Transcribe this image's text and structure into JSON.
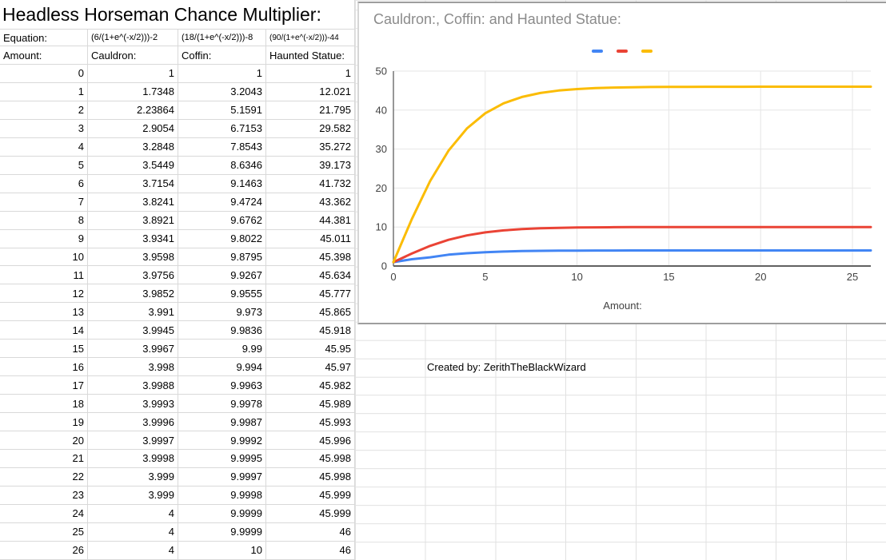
{
  "sheet": {
    "title": "Headless Horseman Chance Multiplier:",
    "equation_label": "Equation:",
    "equations": [
      "(6/(1+e^(-x/2)))-2",
      "(18/(1+e^(-x/2)))-8",
      "(90/(1+e^(-x/2)))-44"
    ],
    "headers": [
      "Amount:",
      "Cauldron:",
      "Coffin:",
      "Haunted Statue:"
    ],
    "rows": [
      [
        0,
        1,
        1,
        1
      ],
      [
        1,
        1.7348,
        3.2043,
        12.021
      ],
      [
        2,
        2.23864,
        5.1591,
        21.795
      ],
      [
        3,
        2.9054,
        6.7153,
        29.582
      ],
      [
        4,
        3.2848,
        7.8543,
        35.272
      ],
      [
        5,
        3.5449,
        8.6346,
        39.173
      ],
      [
        6,
        3.7154,
        9.1463,
        41.732
      ],
      [
        7,
        3.8241,
        9.4724,
        43.362
      ],
      [
        8,
        3.8921,
        9.6762,
        44.381
      ],
      [
        9,
        3.9341,
        9.8022,
        45.011
      ],
      [
        10,
        3.9598,
        9.8795,
        45.398
      ],
      [
        11,
        3.9756,
        9.9267,
        45.634
      ],
      [
        12,
        3.9852,
        9.9555,
        45.777
      ],
      [
        13,
        3.991,
        9.973,
        45.865
      ],
      [
        14,
        3.9945,
        9.9836,
        45.918
      ],
      [
        15,
        3.9967,
        9.99,
        45.95
      ],
      [
        16,
        3.998,
        9.994,
        45.97
      ],
      [
        17,
        3.9988,
        9.9963,
        45.982
      ],
      [
        18,
        3.9993,
        9.9978,
        45.989
      ],
      [
        19,
        3.9996,
        9.9987,
        45.993
      ],
      [
        20,
        3.9997,
        9.9992,
        45.996
      ],
      [
        21,
        3.9998,
        9.9995,
        45.998
      ],
      [
        22,
        3.999,
        9.9997,
        45.998
      ],
      [
        23,
        3.999,
        9.9998,
        45.999
      ],
      [
        24,
        4,
        9.9999,
        45.999
      ],
      [
        25,
        4,
        9.9999,
        46
      ],
      [
        26,
        4,
        10,
        46
      ]
    ],
    "created_by": "Created by: ZerithTheBlackWizard"
  },
  "chart_data": {
    "type": "line",
    "title": "Cauldron:, Coffin: and Haunted Statue:",
    "xlabel": "Amount:",
    "ylabel": "",
    "xlim": [
      0,
      26
    ],
    "ylim": [
      0,
      50
    ],
    "x_ticks": [
      0,
      5,
      10,
      15,
      20,
      25
    ],
    "y_ticks": [
      0,
      10,
      20,
      30,
      40,
      50
    ],
    "grid": true,
    "legend_position": "top-center",
    "legend_labels_visible": false,
    "x": [
      0,
      1,
      2,
      3,
      4,
      5,
      6,
      7,
      8,
      9,
      10,
      11,
      12,
      13,
      14,
      15,
      16,
      17,
      18,
      19,
      20,
      21,
      22,
      23,
      24,
      25,
      26
    ],
    "series": [
      {
        "name": "Cauldron:",
        "color": "#4285F4",
        "values": [
          1,
          1.7348,
          2.23864,
          2.9054,
          3.2848,
          3.5449,
          3.7154,
          3.8241,
          3.8921,
          3.9341,
          3.9598,
          3.9756,
          3.9852,
          3.991,
          3.9945,
          3.9967,
          3.998,
          3.9988,
          3.9993,
          3.9996,
          3.9997,
          3.9998,
          3.999,
          3.999,
          4,
          4,
          4
        ]
      },
      {
        "name": "Coffin:",
        "color": "#EA4335",
        "values": [
          1,
          3.2043,
          5.1591,
          6.7153,
          7.8543,
          8.6346,
          9.1463,
          9.4724,
          9.6762,
          9.8022,
          9.8795,
          9.9267,
          9.9555,
          9.973,
          9.9836,
          9.99,
          9.994,
          9.9963,
          9.9978,
          9.9987,
          9.9992,
          9.9995,
          9.9997,
          9.9998,
          9.9999,
          9.9999,
          10
        ]
      },
      {
        "name": "Haunted Statue:",
        "color": "#FBBC04",
        "values": [
          1,
          12.021,
          21.795,
          29.582,
          35.272,
          39.173,
          41.732,
          43.362,
          44.381,
          45.011,
          45.398,
          45.634,
          45.777,
          45.865,
          45.918,
          45.95,
          45.97,
          45.982,
          45.989,
          45.993,
          45.996,
          45.998,
          45.998,
          45.999,
          45.999,
          46,
          46
        ]
      }
    ]
  }
}
